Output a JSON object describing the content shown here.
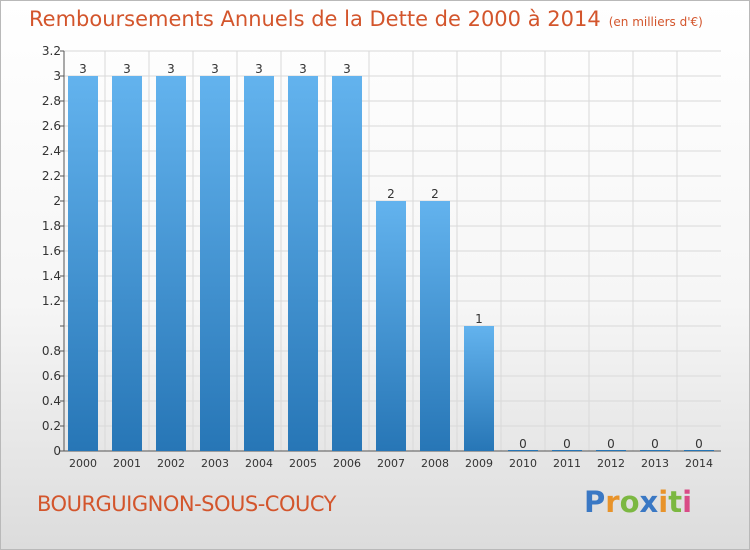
{
  "title": "Remboursements Annuels de la Dette de 2000 à 2014",
  "unit": "(en milliers d'€)",
  "commune": "BOURGUIGNON-SOUS-COUCY",
  "logo": {
    "letters": [
      "P",
      "r",
      "o",
      "x",
      "i",
      "t",
      "i"
    ],
    "colors": [
      "#3a78c4",
      "#e8932a",
      "#7cb842",
      "#3a78c4",
      "#e8932a",
      "#7cb842",
      "#d94b86"
    ]
  },
  "colors": {
    "bar_top": "#63b3ee",
    "bar_bottom": "#2776b6",
    "axis_text": "#333333"
  },
  "chart_data": {
    "type": "bar",
    "categories": [
      "2000",
      "2001",
      "2002",
      "2003",
      "2004",
      "2005",
      "2006",
      "2007",
      "2008",
      "2009",
      "2010",
      "2011",
      "2012",
      "2013",
      "2014"
    ],
    "values": [
      3,
      3,
      3,
      3,
      3,
      3,
      3,
      2,
      2,
      1,
      0,
      0,
      0,
      0,
      0
    ],
    "data_labels": [
      "3",
      "3",
      "3",
      "3",
      "3",
      "3",
      "3",
      "2",
      "2",
      "1",
      "0",
      "0",
      "0",
      "0",
      "0"
    ],
    "ylim": [
      0,
      3.2
    ],
    "yticks": [
      0,
      0.2,
      0.4,
      0.6,
      0.8,
      1,
      1.2,
      1.4,
      1.6,
      1.8,
      2,
      2.2,
      2.4,
      2.6,
      2.8,
      3,
      3.2
    ],
    "ytick_labels": [
      "0",
      "0.2",
      "0.4",
      "0.6",
      "0.8",
      "",
      "1.2",
      "1.4",
      "1.6",
      "1.8",
      "2",
      "2.2",
      "2.4",
      "2.6",
      "2.8",
      "3",
      "3.2"
    ],
    "grid": true,
    "legend": "none"
  }
}
